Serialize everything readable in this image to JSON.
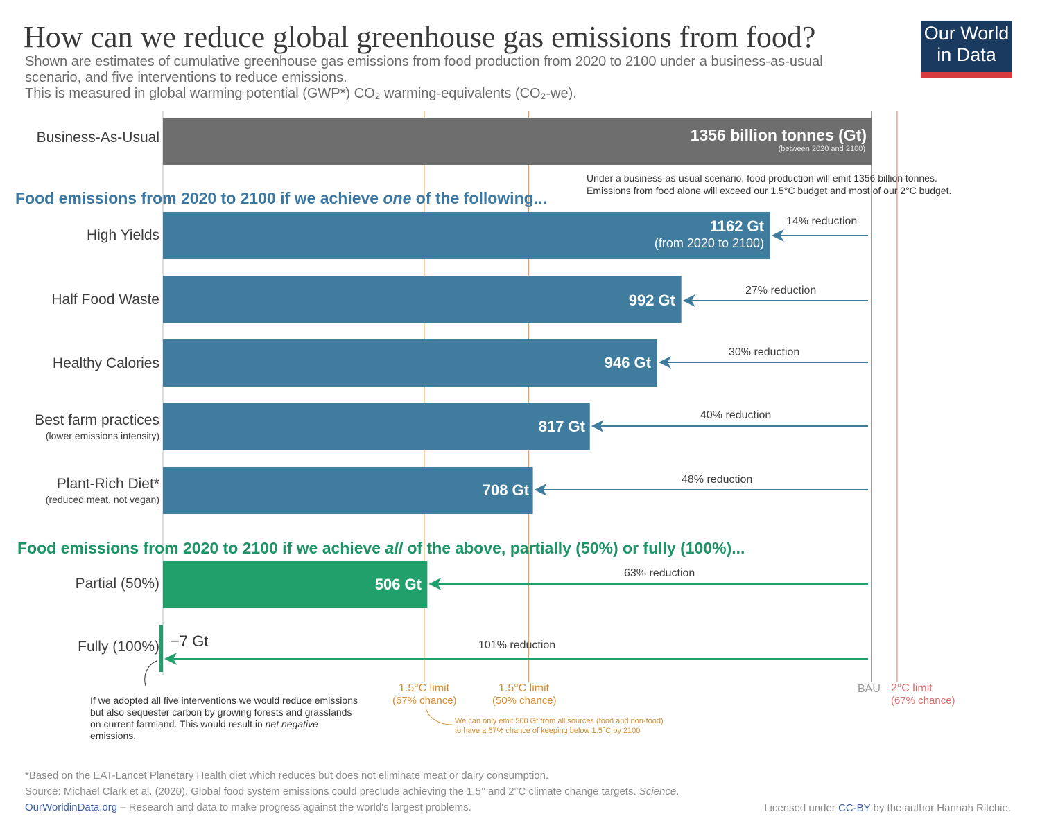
{
  "header": {
    "title": "How can we reduce global greenhouse gas emissions from food?",
    "subtitle_line1": "Shown are estimates of cumulative greenhouse gas emissions from food production from 2020 to 2100 under a business-as-usual",
    "subtitle_line2": "scenario, and five interventions to reduce emissions.",
    "subtitle_line3": "This is measured in global warming potential (GWP*) CO₂ warming-equivalents (CO₂-we).",
    "logo_line1": "Our World",
    "logo_line2": "in Data"
  },
  "sections": {
    "one_prefix": "Food emissions from 2020 to 2100 if we achieve ",
    "one_emph": "one",
    "one_suffix": " of the following...",
    "all_prefix": "Food emissions from 2020 to 2100 if we achieve ",
    "all_emph": "all",
    "all_suffix": " of the above, partially (50%) or fully (100%)..."
  },
  "rows": [
    {
      "label": "Business-As-Usual",
      "sublabel": "",
      "bar_label": "1356 billion tonnes (Gt)",
      "bar_sublabel": "(between 2020 and 2100)",
      "reduction": ""
    },
    {
      "label": "High Yields",
      "sublabel": "",
      "bar_label": "1162 Gt",
      "bar_sublabel": "(from 2020 to 2100)",
      "reduction": "14% reduction"
    },
    {
      "label": "Half Food Waste",
      "sublabel": "",
      "bar_label": "992 Gt",
      "bar_sublabel": "",
      "reduction": "27% reduction"
    },
    {
      "label": "Healthy Calories",
      "sublabel": "",
      "bar_label": "946 Gt",
      "bar_sublabel": "",
      "reduction": "30% reduction"
    },
    {
      "label": "Best farm practices",
      "sublabel": "(lower emissions intensity)",
      "bar_label": "817 Gt",
      "bar_sublabel": "",
      "reduction": "40% reduction"
    },
    {
      "label": "Plant-Rich Diet*",
      "sublabel": "(reduced meat, not vegan)",
      "bar_label": "708 Gt",
      "bar_sublabel": "",
      "reduction": "48% reduction"
    },
    {
      "label": "Partial (50%)",
      "sublabel": "",
      "bar_label": "506 Gt",
      "bar_sublabel": "",
      "reduction": "63% reduction"
    },
    {
      "label": "Fully (100%)",
      "sublabel": "",
      "bar_label": "−7 Gt",
      "bar_sublabel": "",
      "reduction": "101% reduction"
    }
  ],
  "annotations": {
    "bau_note_line1": "Under a business-as-usual scenario, food production will emit 1356 billion tonnes.",
    "bau_note_line2": "Emissions from food alone will exceed our 1.5°C budget and most of our 2°C budget.",
    "negative_note": "If we adopted all five interventions we would reduce emissions but also sequester carbon by growing forests and grasslands on current farmland. This would result in ",
    "negative_note_emph": "net negative",
    "negative_note_end": " emissions.",
    "budget_note_line1": "We can only emit 500 Gt from all sources (food and non-food)",
    "budget_note_line2": "to have a 67% chance of keeping below 1.5°C by 2100"
  },
  "reference_lines": [
    {
      "value": 500,
      "label": "1.5°C limit",
      "sublabel": "(67% chance)",
      "color": "#d98c2e"
    },
    {
      "value": 700,
      "label": "1.5°C limit",
      "sublabel": "(50% chance)",
      "color": "#d98c2e"
    },
    {
      "value": 1356,
      "label": "BAU",
      "sublabel": "",
      "color": "#999999"
    },
    {
      "value": 1405,
      "label": "2°C limit",
      "sublabel": "(67% chance)",
      "color": "#e06a6a"
    }
  ],
  "colors": {
    "bau": "#6e6e6e",
    "blue": "#3f7c9e",
    "green": "#22a06b",
    "one_heading": "#3a78a3",
    "all_heading": "#1e9466",
    "orange": "#d98c2e",
    "red": "#e06a6a"
  },
  "chart_data": {
    "type": "bar",
    "orientation": "horizontal",
    "title": "How can we reduce global greenhouse gas emissions from food?",
    "unit": "billion tonnes CO₂-we (Gt), 2020–2100",
    "categories": [
      "Business-As-Usual",
      "High Yields",
      "Half Food Waste",
      "Healthy Calories",
      "Best farm practices",
      "Plant-Rich Diet*",
      "Partial (50%)",
      "Fully (100%)"
    ],
    "values": [
      1356,
      1162,
      992,
      946,
      817,
      708,
      506,
      -7
    ],
    "reductions_pct": [
      0,
      14,
      27,
      30,
      40,
      48,
      63,
      101
    ],
    "xlim": [
      0,
      1420
    ]
  },
  "footer": {
    "footnote": "*Based on the EAT-Lancet Planetary Health diet which reduces but does not eliminate meat or dairy consumption.",
    "source_prefix": "Source: Michael Clark et al. (2020). Global food system emissions could preclude achieving the 1.5° and 2°C climate change targets. ",
    "source_journal": "Science",
    "source_suffix": ".",
    "owid_link": "OurWorldinData.org",
    "owid_tagline": " – Research and data to make progress against the world's largest problems.",
    "license_prefix": "Licensed under ",
    "license_link": "CC-BY",
    "license_suffix": " by the author Hannah Ritchie."
  }
}
